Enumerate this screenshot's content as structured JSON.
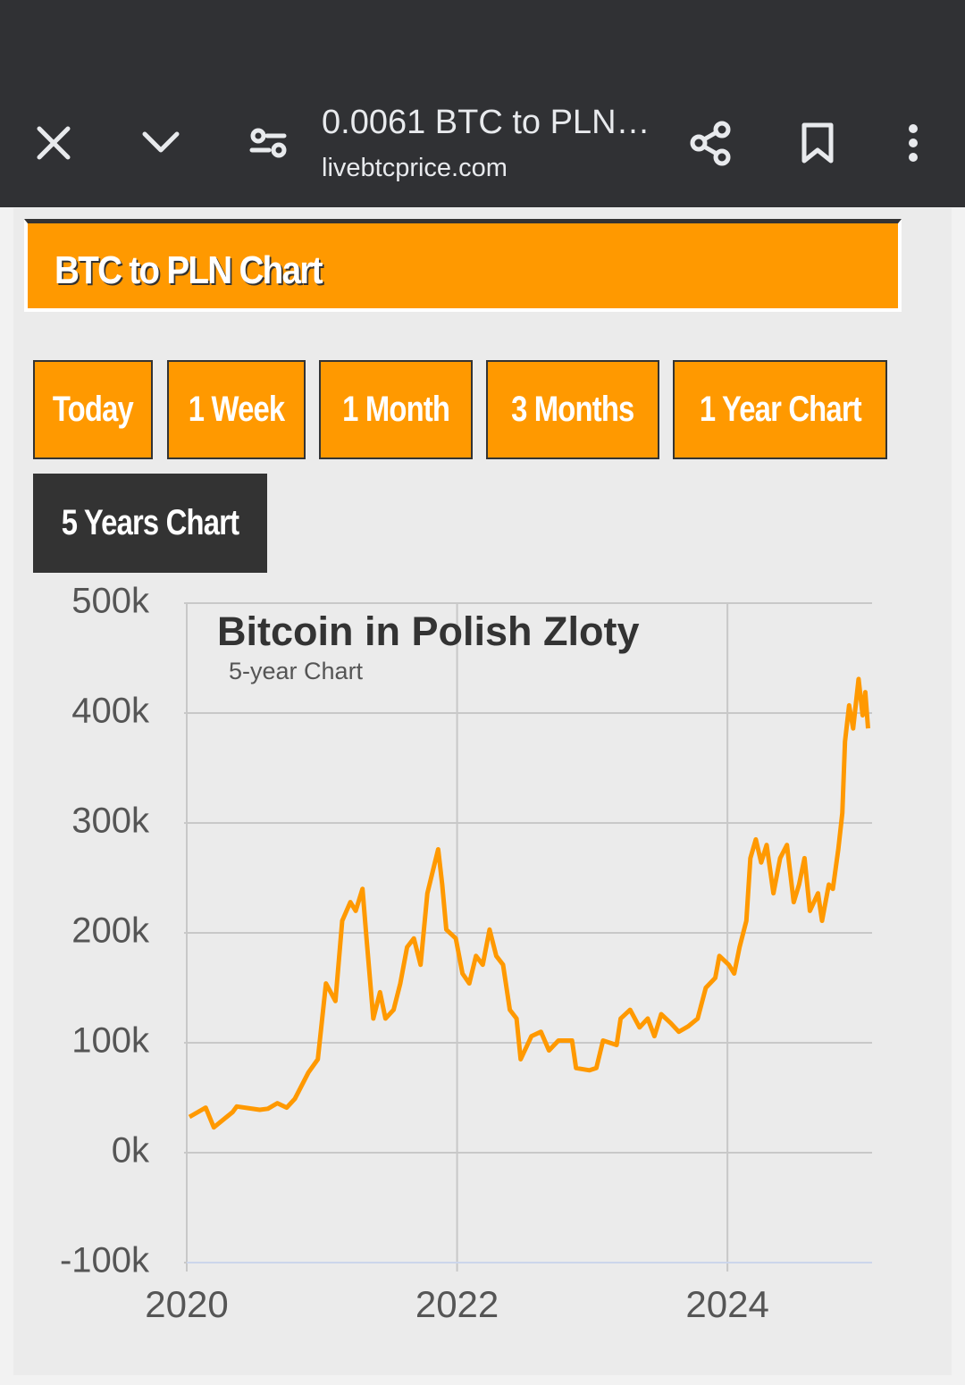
{
  "browser": {
    "title": "0.0061 BTC to PLN…",
    "url": "livebtcprice.com"
  },
  "header": {
    "title": "BTC to PLN Chart"
  },
  "tabs": [
    {
      "label": "Today",
      "active": false
    },
    {
      "label": "1 Week",
      "active": false
    },
    {
      "label": "1 Month",
      "active": false
    },
    {
      "label": "3 Months",
      "active": false
    },
    {
      "label": "1 Year Chart",
      "active": false
    },
    {
      "label": "5 Years Chart",
      "active": true
    }
  ],
  "chart_data": {
    "type": "line",
    "title": "Bitcoin in Polish Zloty",
    "subtitle": "5-year Chart",
    "x": [
      2020.02,
      2020.14,
      2020.2,
      2020.34,
      2020.37,
      2020.54,
      2020.6,
      2020.67,
      2020.74,
      2020.8,
      2020.9,
      2020.97,
      2021.03,
      2021.1,
      2021.15,
      2021.21,
      2021.25,
      2021.3,
      2021.33,
      2021.38,
      2021.43,
      2021.47,
      2021.53,
      2021.58,
      2021.63,
      2021.68,
      2021.73,
      2021.78,
      2021.82,
      2021.86,
      2021.89,
      2021.92,
      2021.99,
      2022.04,
      2022.09,
      2022.14,
      2022.19,
      2022.24,
      2022.29,
      2022.34,
      2022.39,
      2022.44,
      2022.47,
      2022.55,
      2022.62,
      2022.68,
      2022.75,
      2022.85,
      2022.88,
      2022.98,
      2023.03,
      2023.08,
      2023.18,
      2023.21,
      2023.28,
      2023.35,
      2023.41,
      2023.46,
      2023.51,
      2023.58,
      2023.64,
      2023.71,
      2023.78,
      2023.84,
      2023.91,
      2023.94,
      2024.01,
      2024.05,
      2024.09,
      2024.14,
      2024.17,
      2024.21,
      2024.25,
      2024.29,
      2024.34,
      2024.39,
      2024.44,
      2024.49,
      2024.53,
      2024.57,
      2024.61,
      2024.67,
      2024.7,
      2024.75,
      2024.78,
      2024.82,
      2024.85,
      2024.87,
      2024.9,
      2024.93,
      2024.97,
      2025.0,
      2025.02,
      2025.04
    ],
    "series": [
      {
        "name": "BTC/PLN",
        "color": "#ff9900",
        "values": [
          32500,
          41000,
          23000,
          37000,
          42000,
          39000,
          40000,
          45000,
          41000,
          49000,
          73000,
          85000,
          154000,
          138000,
          211000,
          228000,
          220000,
          240000,
          195000,
          122000,
          146000,
          122000,
          130000,
          154000,
          187000,
          195000,
          171000,
          236000,
          256000,
          276000,
          244000,
          203000,
          195000,
          163000,
          154000,
          179000,
          171000,
          203000,
          179000,
          171000,
          130000,
          122000,
          85000,
          106000,
          110000,
          93000,
          102000,
          102000,
          77000,
          75000,
          77000,
          102000,
          98000,
          122000,
          130000,
          114000,
          122000,
          106000,
          126000,
          118000,
          110000,
          115000,
          122000,
          150000,
          159000,
          179000,
          171000,
          163000,
          187000,
          211000,
          268000,
          285000,
          264000,
          280000,
          236000,
          268000,
          280000,
          228000,
          244000,
          268000,
          220000,
          236000,
          211000,
          244000,
          240000,
          276000,
          309000,
          374000,
          407000,
          386000,
          431000,
          398000,
          419000,
          386000
        ]
      }
    ],
    "xlim": [
      2020,
      2025.07
    ],
    "ylim": [
      -100000,
      500000
    ],
    "xticks": [
      2020,
      2022,
      2024
    ],
    "yticks": [
      {
        "value": -100000,
        "label": "-100k"
      },
      {
        "value": 0,
        "label": "0k"
      },
      {
        "value": 100000,
        "label": "100k"
      },
      {
        "value": 200000,
        "label": "200k"
      },
      {
        "value": 300000,
        "label": "300k"
      },
      {
        "value": 400000,
        "label": "400k"
      },
      {
        "value": 500000,
        "label": "500k"
      }
    ],
    "grid": true
  }
}
